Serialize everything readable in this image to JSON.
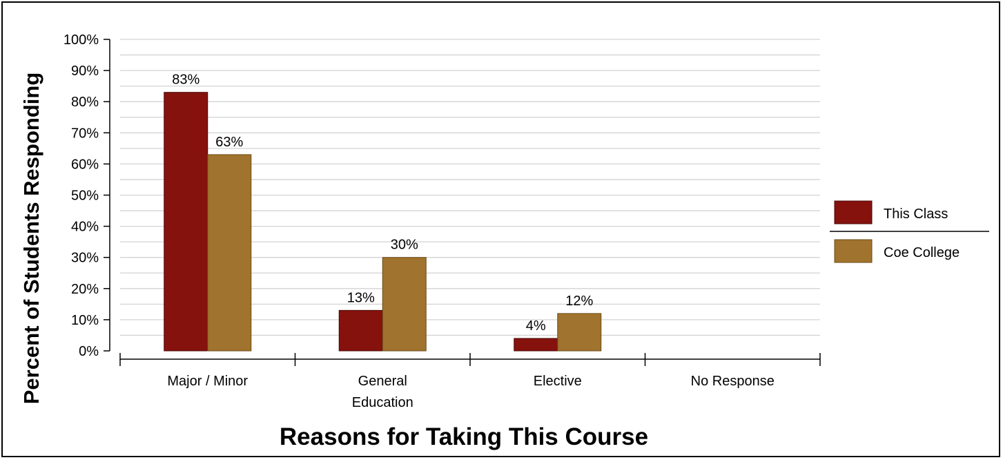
{
  "chart_data": {
    "type": "bar",
    "xlabel": "Reasons for Taking This Course",
    "ylabel": "Percent of Students Responding",
    "ylim": [
      0,
      100
    ],
    "yticks": [
      "0%",
      "10%",
      "20%",
      "30%",
      "40%",
      "50%",
      "60%",
      "70%",
      "80%",
      "90%",
      "100%"
    ],
    "categories": [
      [
        "Major / Minor"
      ],
      [
        "General",
        "Education"
      ],
      [
        "Elective"
      ],
      [
        "No Response"
      ]
    ],
    "series": [
      {
        "name": "This Class",
        "color": "#85120d",
        "values": [
          83,
          13,
          4,
          null
        ],
        "labels": [
          "83%",
          "13%",
          "4%",
          ""
        ]
      },
      {
        "name": "Coe College",
        "color": "#a0732e",
        "values": [
          63,
          30,
          12,
          null
        ],
        "labels": [
          "63%",
          "30%",
          "12%",
          ""
        ]
      }
    ],
    "grid": true,
    "legend_position": "right"
  }
}
